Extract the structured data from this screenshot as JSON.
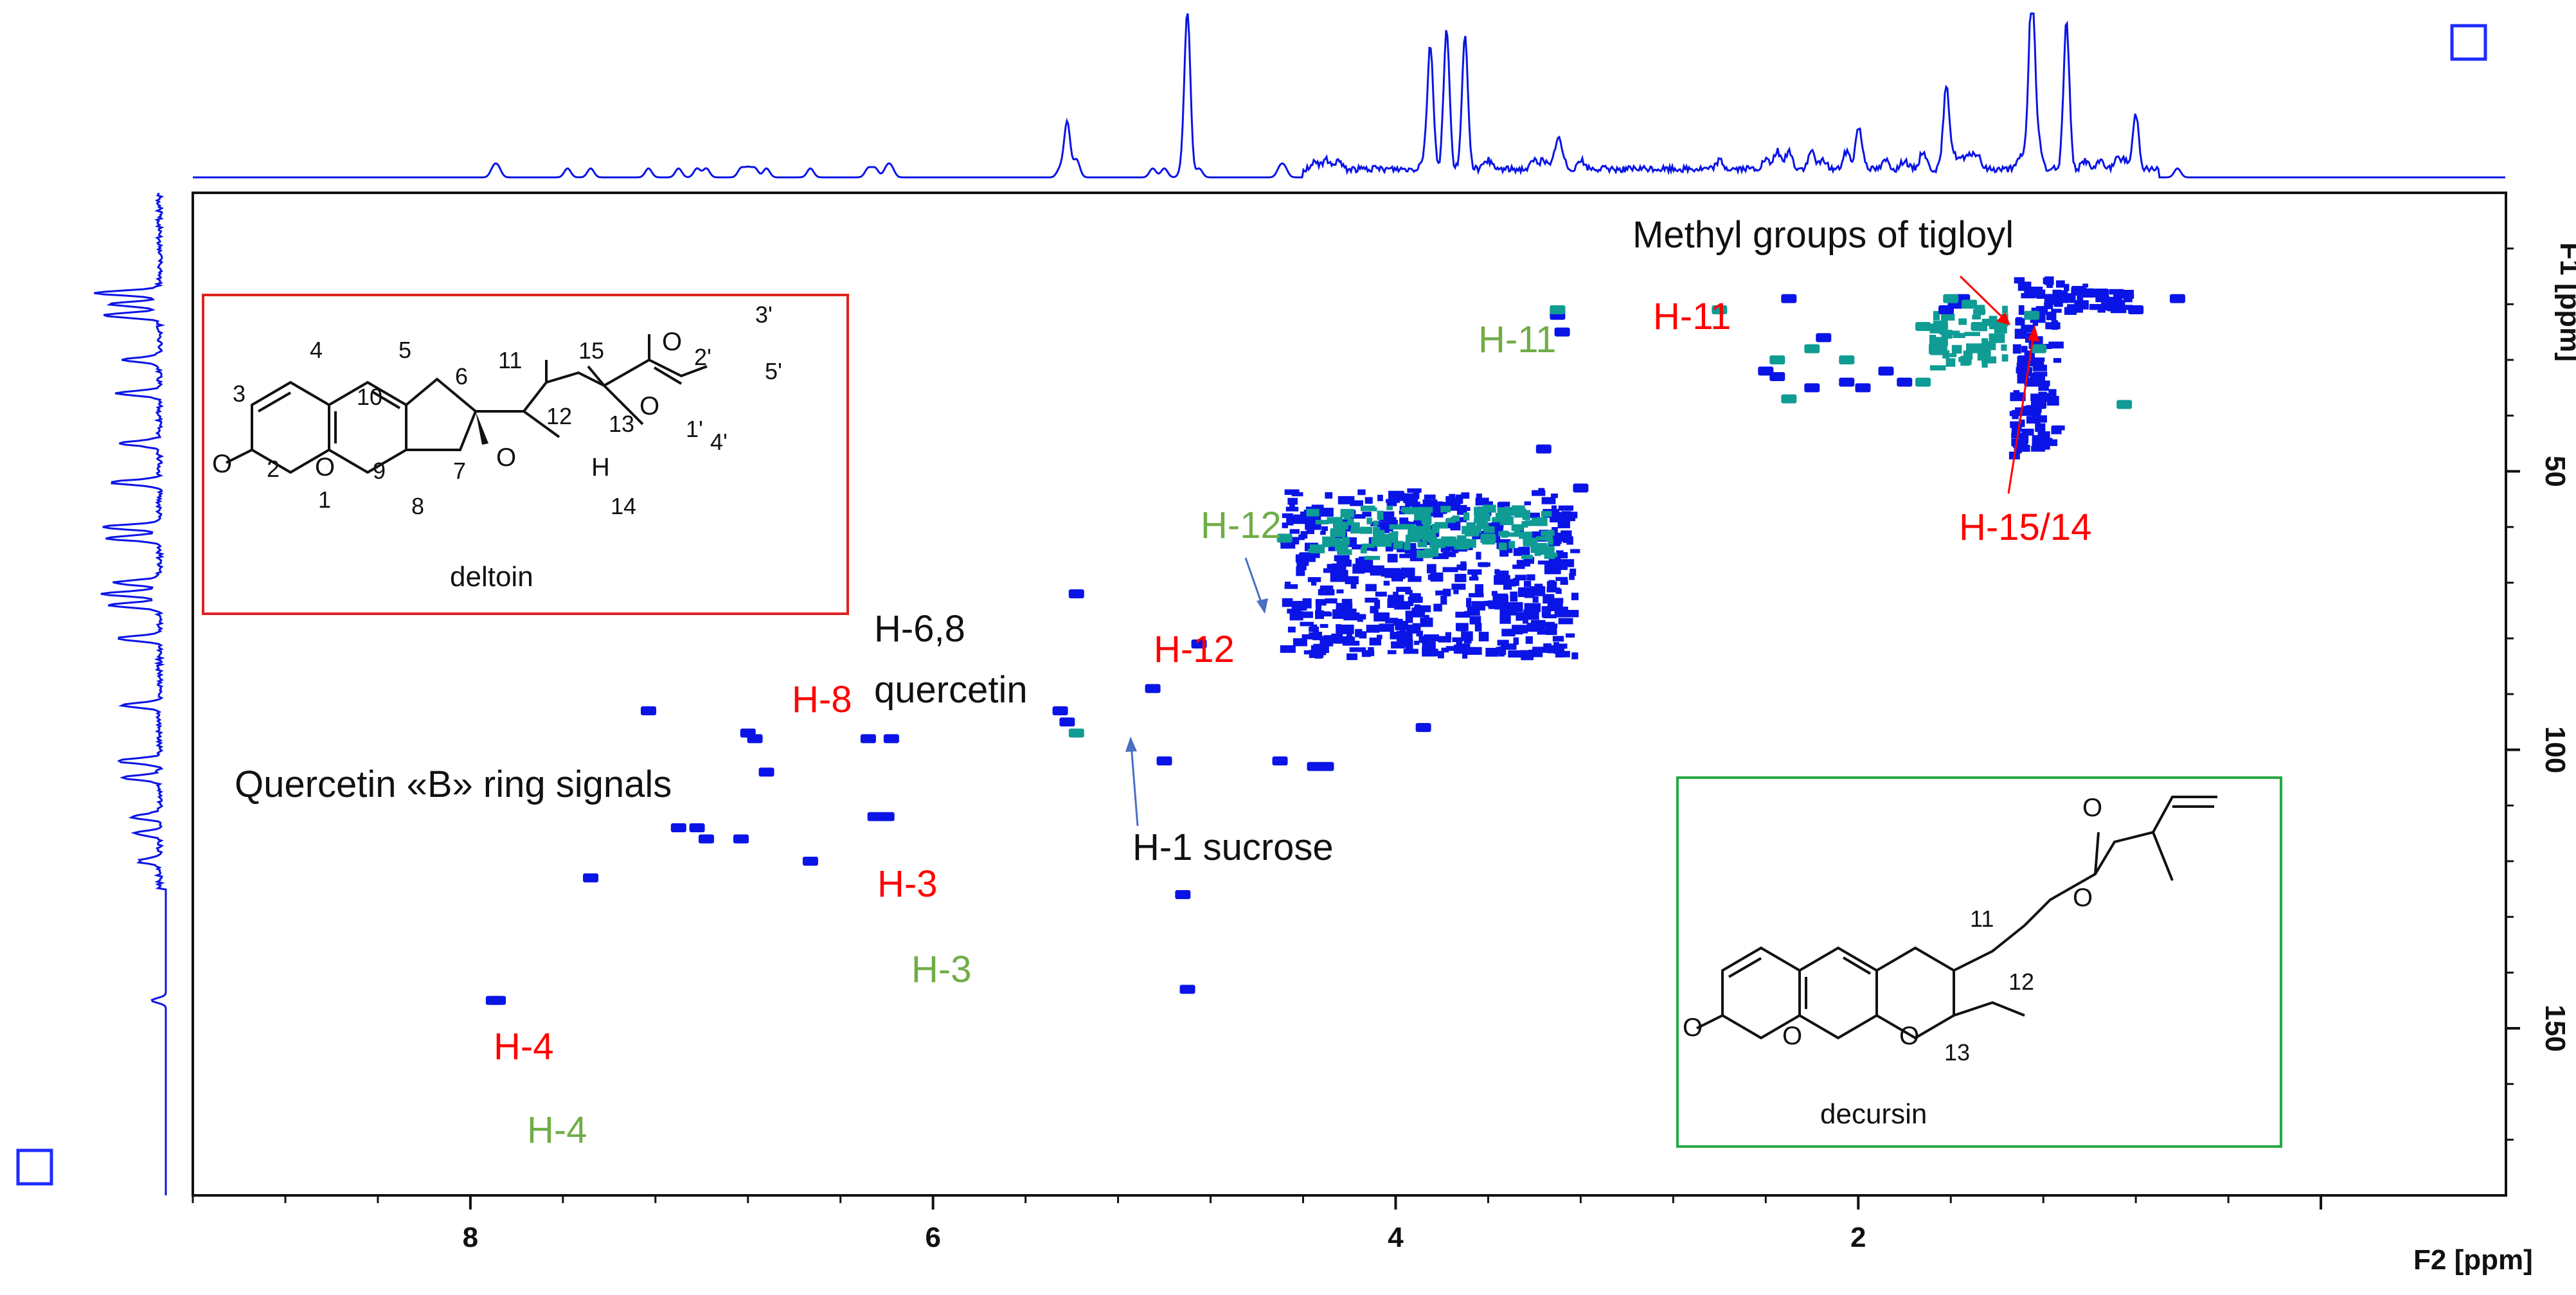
{
  "chart_data": {
    "type": "scatter",
    "subtype": "2D HSQC NMR contour spectrum",
    "xlabel": "F2 [ppm]",
    "ylabel": "F1 [ppm]",
    "xlim": [
      9.2,
      -0.8
    ],
    "ylim": [
      0,
      180
    ],
    "x_reversed": true,
    "y_reversed": true,
    "xticks": [
      8,
      6,
      4,
      2,
      0
    ],
    "xtick_labels": [
      "8",
      "6",
      "4",
      "2",
      ""
    ],
    "yticks": [
      50,
      100,
      150
    ],
    "ytick_labels": [
      "50",
      "100",
      "150"
    ],
    "grid": false,
    "colors": {
      "positive": "#0a14e6",
      "negative": "#0f9c95",
      "axes": "#111111",
      "projection": "#0a14e6"
    },
    "series": [
      {
        "name": "",
        "color": "#0a14e6",
        "points": [
          [
            7.9,
            145
          ],
          [
            7.88,
            145
          ],
          [
            7.48,
            123
          ],
          [
            7.23,
            93
          ],
          [
            7.1,
            114
          ],
          [
            7.02,
            114
          ],
          [
            6.98,
            116
          ],
          [
            6.83,
            116
          ],
          [
            6.8,
            97
          ],
          [
            6.77,
            98
          ],
          [
            6.72,
            104
          ],
          [
            6.53,
            120
          ],
          [
            6.28,
            98
          ],
          [
            6.25,
            112
          ],
          [
            6.2,
            112
          ],
          [
            6.18,
            98
          ],
          [
            5.45,
            93
          ],
          [
            5.42,
            95
          ],
          [
            5.38,
            72
          ],
          [
            5.05,
            89
          ],
          [
            5.0,
            102
          ],
          [
            4.92,
            126
          ],
          [
            4.9,
            143
          ],
          [
            4.85,
            81
          ],
          [
            4.5,
            102
          ],
          [
            4.35,
            103
          ],
          [
            4.3,
            103
          ],
          [
            3.88,
            96
          ],
          [
            3.4,
            78
          ],
          [
            3.36,
            46
          ],
          [
            3.3,
            22
          ],
          [
            3.3,
            21
          ],
          [
            3.28,
            25
          ],
          [
            3.2,
            53
          ],
          [
            2.4,
            32
          ],
          [
            2.35,
            33
          ],
          [
            2.2,
            35
          ],
          [
            2.05,
            34
          ],
          [
            1.98,
            35
          ],
          [
            1.88,
            32
          ],
          [
            1.8,
            34
          ],
          [
            1.58,
            20
          ],
          [
            1.55,
            19
          ],
          [
            1.62,
            21
          ],
          [
            1.28,
            30
          ],
          [
            1.25,
            34
          ],
          [
            1.22,
            38
          ],
          [
            1.23,
            22
          ],
          [
            1.25,
            18
          ],
          [
            1.3,
            45
          ],
          [
            1.02,
            18
          ],
          [
            0.95,
            18
          ],
          [
            0.88,
            20
          ],
          [
            0.8,
            21
          ],
          [
            0.62,
            19
          ],
          [
            2.3,
            19
          ],
          [
            2.15,
            26
          ]
        ],
        "regions": [
          {
            "x": [
              3.2,
              4.5
            ],
            "y": [
              53,
              84
            ]
          },
          {
            "x": [
              1.1,
              1.35
            ],
            "y": [
              15,
              48
            ]
          },
          {
            "x": [
              0.8,
              1.2
            ],
            "y": [
              16,
              22
            ]
          }
        ]
      },
      {
        "name": "",
        "color": "#0f9c95",
        "points": [
          [
            7.58,
            62
          ],
          [
            5.38,
            97
          ],
          [
            4.48,
            62
          ],
          [
            4.25,
            61
          ],
          [
            3.6,
            62
          ],
          [
            3.3,
            21
          ],
          [
            2.6,
            21
          ],
          [
            2.35,
            30
          ],
          [
            2.2,
            28
          ],
          [
            2.05,
            30
          ],
          [
            1.72,
            24
          ],
          [
            1.6,
            19
          ],
          [
            1.52,
            20
          ],
          [
            1.48,
            24
          ],
          [
            1.72,
            34
          ],
          [
            1.5,
            28
          ],
          [
            1.25,
            22
          ],
          [
            1.22,
            28
          ],
          [
            0.85,
            38
          ],
          [
            2.3,
            37
          ]
        ],
        "regions": [
          {
            "x": [
              3.3,
              4.4
            ],
            "y": [
              56,
              66
            ]
          },
          {
            "x": [
              1.35,
              1.7
            ],
            "y": [
              20,
              32
            ]
          }
        ]
      }
    ],
    "annotations": [
      {
        "text": "Methyl groups of tigloyl",
        "color": "#111111"
      },
      {
        "text": "H-11",
        "color": "#ff0000"
      },
      {
        "text": "H-11",
        "color": "#70ad47"
      },
      {
        "text": "H-15/14",
        "color": "#ff0000"
      },
      {
        "text": "H-12",
        "color": "#70ad47"
      },
      {
        "text": "H-12",
        "color": "#ff0000"
      },
      {
        "text": "H-6,8",
        "color": "#111111"
      },
      {
        "text": "quercetin",
        "color": "#111111"
      },
      {
        "text": "H-8",
        "color": "#ff0000"
      },
      {
        "text": "Quercetin «B» ring signals",
        "color": "#111111"
      },
      {
        "text": "H-1 sucrose",
        "color": "#111111"
      },
      {
        "text": "H-3",
        "color": "#ff0000"
      },
      {
        "text": "H-3",
        "color": "#70ad47"
      },
      {
        "text": "H-4",
        "color": "#ff0000"
      },
      {
        "text": "H-4",
        "color": "#70ad47"
      }
    ],
    "insets": [
      {
        "name": "deltoin",
        "border_color": "#e02020",
        "atoms": [
          "O",
          "O",
          "O",
          "O",
          "O",
          "H"
        ],
        "numbering": [
          "4",
          "5",
          "6",
          "11",
          "15",
          "3'",
          "2'",
          "5'",
          "3",
          "10",
          "12",
          "13",
          "1'",
          "4'",
          "2",
          "1",
          "9",
          "7",
          "14",
          "8"
        ]
      },
      {
        "name": "decursin",
        "border_color": "#27a844",
        "atoms": [
          "O",
          "O",
          "O",
          "O",
          "O"
        ],
        "numbering": [
          "11",
          "12",
          "13"
        ]
      }
    ]
  },
  "controls": {
    "corner_box_top_right": "square-toggle",
    "corner_box_bottom_left": "square-toggle"
  }
}
